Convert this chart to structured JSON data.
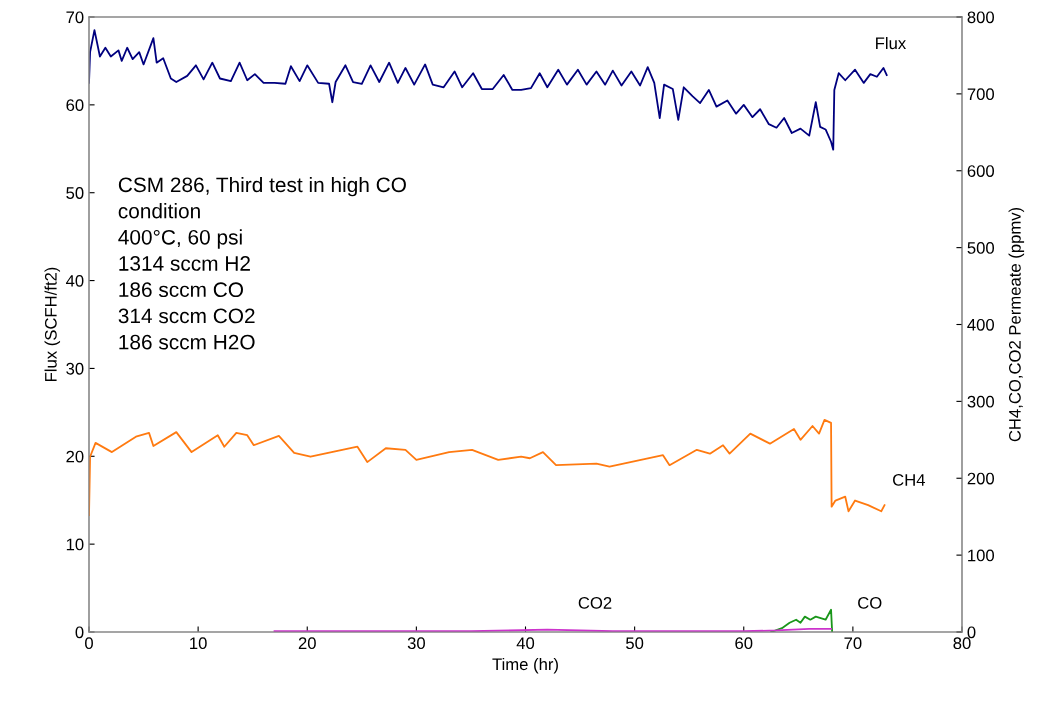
{
  "chart_data": {
    "type": "line",
    "xlabel": "Time (hr)",
    "ylabel": "Flux (SCFH/ft2)",
    "y2label": "CH4,CO,CO2 Permeate (ppmv)",
    "xlim": [
      0,
      80
    ],
    "xticks": [
      0,
      10,
      20,
      30,
      40,
      50,
      60,
      70,
      80
    ],
    "ylim": [
      0,
      70
    ],
    "yticks": [
      0,
      10,
      20,
      30,
      40,
      50,
      60,
      70
    ],
    "y2lim": [
      0,
      800
    ],
    "y2ticks": [
      0,
      100,
      200,
      300,
      400,
      500,
      600,
      700,
      800
    ],
    "grid": false,
    "legend": false,
    "marker": "none",
    "line_style": "solid",
    "annotations": [
      "CSM 286, Third test in high CO\ncondition\n400°C, 60 psi\n1314 sccm H2\n186 sccm CO\n314 sccm CO2\n186 sccm H2O"
    ],
    "series": [
      {
        "name": "Flux",
        "color": "#00007f",
        "x": [
          0,
          0.1,
          0.5,
          1,
          1.5,
          2,
          2.7,
          3,
          3.5,
          4,
          4.6,
          5,
          5.9,
          6.2,
          6.8,
          7.5,
          8,
          9,
          9.8,
          10.5,
          11.3,
          12,
          13,
          13.8,
          14.5,
          15.2,
          16,
          17,
          18,
          18.5,
          19.3,
          20,
          21,
          22,
          22.3,
          22.6,
          23.5,
          24.2,
          25,
          25.8,
          26.6,
          27.5,
          28.3,
          29,
          29.8,
          30.8,
          31.5,
          32.5,
          33.5,
          34.2,
          35.2,
          36,
          37,
          38,
          38.8,
          39.6,
          40.5,
          41.3,
          42,
          43,
          43.8,
          44.8,
          45.6,
          46.5,
          47.3,
          48,
          48.8,
          49.7,
          50.5,
          51.2,
          51.8,
          52.3,
          52.7,
          53.5,
          54,
          54.5,
          55.3,
          56,
          56.8,
          57.5,
          58.5,
          59.3,
          60,
          60.8,
          61.5,
          62.3,
          63,
          63.7,
          64.4,
          65.2,
          66,
          66.6,
          67,
          67.5,
          68,
          68.2,
          68.3,
          68.7,
          69.3,
          70.2,
          71,
          71.6,
          72.2,
          72.8,
          73.1
        ],
        "values": [
          62.5,
          66.0,
          68.5,
          65.5,
          66.5,
          65.5,
          66.2,
          65.0,
          66.5,
          65.2,
          66.0,
          64.6,
          67.6,
          64.8,
          65.3,
          63.0,
          62.6,
          63.3,
          64.5,
          62.9,
          64.8,
          63.0,
          62.7,
          64.8,
          62.8,
          63.5,
          62.5,
          62.5,
          62.4,
          64.4,
          62.7,
          64.5,
          62.5,
          62.4,
          60.3,
          62.6,
          64.5,
          62.6,
          62.4,
          64.5,
          62.6,
          64.8,
          62.5,
          64.2,
          62.3,
          64.6,
          62.3,
          62.0,
          63.8,
          62.0,
          63.6,
          61.8,
          61.8,
          63.4,
          61.7,
          61.7,
          61.9,
          63.6,
          62.0,
          64.0,
          62.3,
          64.0,
          62.3,
          63.8,
          62.3,
          63.9,
          62.2,
          63.8,
          62.2,
          64.3,
          62.5,
          58.5,
          62.3,
          61.8,
          58.3,
          62.0,
          61.0,
          60.2,
          61.7,
          59.8,
          60.5,
          59.0,
          60.0,
          58.6,
          59.5,
          57.8,
          57.4,
          58.5,
          56.8,
          57.3,
          56.5,
          60.3,
          57.5,
          57.2,
          55.8,
          54.9,
          61.7,
          63.6,
          62.8,
          64.0,
          62.5,
          63.5,
          63.2,
          64.2,
          63.4
        ]
      },
      {
        "name": "CH4",
        "color": "#ff7a10",
        "axis": "y2",
        "x": [
          0,
          0.1,
          0.6,
          2.1,
          4.3,
          5.5,
          5.9,
          8.0,
          9.4,
          11.8,
          12.4,
          13.5,
          14.5,
          15.1,
          17.4,
          18.8,
          20.3,
          24.6,
          25.5,
          27.2,
          29,
          30,
          33,
          35.1,
          37.5,
          39.6,
          40.4,
          41.6,
          42.8,
          46.5,
          47.7,
          52.6,
          53.2,
          55.7,
          56.9,
          58.1,
          58.7,
          60.6,
          62.4,
          64.6,
          65.2,
          66.3,
          66.9,
          67.4,
          68.0,
          68.05,
          68.4,
          69.3,
          69.6,
          70.2,
          71.4,
          72.6,
          72.9
        ],
        "values": [
          152,
          228,
          246,
          234,
          254,
          259,
          242,
          260,
          234,
          256,
          241,
          259,
          256,
          243,
          255,
          233,
          228,
          241,
          221,
          239,
          237,
          224,
          234,
          237,
          224,
          228,
          226,
          234,
          217,
          219,
          215,
          230,
          217,
          237,
          232,
          243,
          232,
          258,
          245,
          264,
          250,
          268,
          258,
          276,
          272,
          163,
          171,
          176,
          157,
          171,
          165,
          157,
          165
        ]
      },
      {
        "name": "CO",
        "color": "#1a961a",
        "axis": "y2",
        "x": [
          62.5,
          63.5,
          64.2,
          64.8,
          65.2,
          65.6,
          66.1,
          66.6,
          67.5,
          68.0,
          68.1
        ],
        "values": [
          0,
          5,
          12,
          16,
          12,
          20,
          16,
          20,
          16,
          29,
          0
        ]
      },
      {
        "name": "CO2",
        "color": "#cc33cc",
        "axis": "y2",
        "x": [
          17,
          25,
          35,
          42,
          48,
          55,
          60,
          63,
          66,
          68
        ],
        "values": [
          1,
          1,
          1,
          3,
          1,
          1,
          1,
          2,
          4,
          4
        ]
      }
    ]
  }
}
